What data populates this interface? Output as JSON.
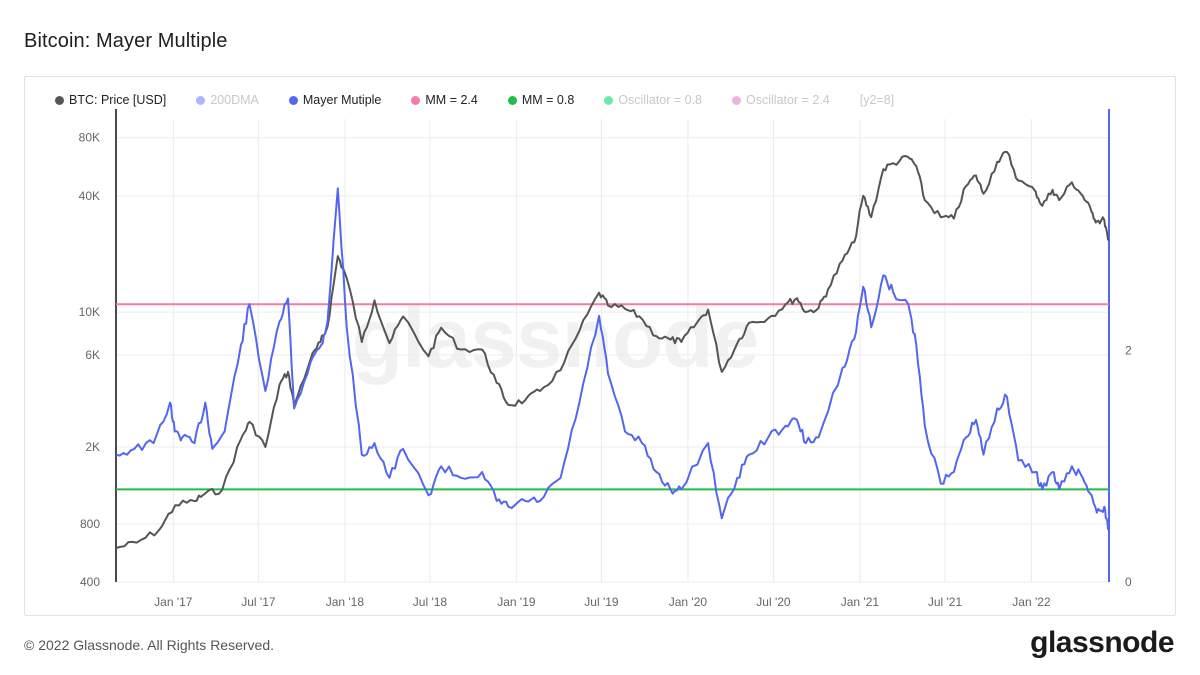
{
  "page": {
    "title": "Bitcoin: Mayer Multiple",
    "footer": "© 2022 Glassnode. All Rights Reserved.",
    "brand": "glassnode",
    "watermark": "glassnode"
  },
  "colors": {
    "price": "#555555",
    "dma": "#8a97f5",
    "mayer": "#5266f0",
    "mm24": "#f07dae",
    "mm08": "#22bb44",
    "osc08": "#2fe08a",
    "osc24": "#f08fd0"
  },
  "legend": [
    {
      "label": "BTC: Price [USD]",
      "color": "#555555",
      "muted": false
    },
    {
      "label": "200DMA",
      "color": "#8a97f5",
      "muted": true
    },
    {
      "label": "Mayer Mutiple",
      "color": "#5266f0",
      "muted": false
    },
    {
      "label": "MM = 2.4",
      "color": "#f07dae",
      "muted": false
    },
    {
      "label": "MM = 0.8",
      "color": "#22bb44",
      "muted": false
    },
    {
      "label": "Oscillator = 0.8",
      "color": "#2fe08a",
      "muted": true
    },
    {
      "label": "Oscillator = 2.4",
      "color": "#f08fd0",
      "muted": true
    }
  ],
  "legend_extra": "[y2=8]",
  "chart_data": {
    "type": "line",
    "x_tick_labels": [
      "Jan '17",
      "Jul '17",
      "Jan '18",
      "Jul '18",
      "Jan '19",
      "Jul '19",
      "Jan '20",
      "Jul '20",
      "Jan '21",
      "Jul '21",
      "Jan '22"
    ],
    "x_range": [
      "2016-09-01",
      "2022-06-15"
    ],
    "y_left": {
      "scale": "log",
      "range": [
        400,
        100000
      ],
      "ticks": [
        400,
        800,
        2000,
        6000,
        10000,
        40000,
        80000
      ],
      "tick_labels": [
        "400",
        "800",
        "2K",
        "6K",
        "10K",
        "40K",
        "80K"
      ]
    },
    "y_right": {
      "scale": "linear",
      "range": [
        0,
        4.0
      ],
      "ticks": [
        0,
        2
      ],
      "tick_labels": [
        "0",
        "2"
      ]
    },
    "grid": true,
    "legend_position": "top-left",
    "thresholds": [
      {
        "name": "MM = 2.4",
        "value": 2.4,
        "axis": "right"
      },
      {
        "name": "MM = 0.8",
        "value": 0.8,
        "axis": "right"
      }
    ],
    "series": [
      {
        "name": "BTC: Price [USD]",
        "axis": "left",
        "x": [
          "2016-09-01",
          "2016-10-15",
          "2016-12-01",
          "2017-01-05",
          "2017-02-15",
          "2017-03-10",
          "2017-04-15",
          "2017-05-25",
          "2017-06-12",
          "2017-07-16",
          "2017-08-15",
          "2017-09-02",
          "2017-09-15",
          "2017-10-20",
          "2017-11-10",
          "2017-11-25",
          "2017-12-17",
          "2018-01-05",
          "2018-02-06",
          "2018-03-05",
          "2018-04-06",
          "2018-05-05",
          "2018-06-28",
          "2018-07-25",
          "2018-09-05",
          "2018-10-20",
          "2018-11-20",
          "2018-12-15",
          "2019-01-20",
          "2019-02-20",
          "2019-04-05",
          "2019-05-15",
          "2019-06-26",
          "2019-07-15",
          "2019-08-20",
          "2019-09-20",
          "2019-10-26",
          "2019-11-25",
          "2019-12-18",
          "2020-01-20",
          "2020-02-13",
          "2020-03-13",
          "2020-04-15",
          "2020-05-10",
          "2020-06-20",
          "2020-07-27",
          "2020-08-20",
          "2020-09-08",
          "2020-10-05",
          "2020-10-25",
          "2020-11-25",
          "2020-12-20",
          "2021-01-08",
          "2021-01-25",
          "2021-02-20",
          "2021-03-13",
          "2021-04-14",
          "2021-05-01",
          "2021-05-19",
          "2021-06-22",
          "2021-07-20",
          "2021-08-15",
          "2021-09-05",
          "2021-09-21",
          "2021-10-20",
          "2021-11-10",
          "2021-12-04",
          "2022-01-10",
          "2022-01-24",
          "2022-02-15",
          "2022-03-01",
          "2022-03-28",
          "2022-04-20",
          "2022-05-09",
          "2022-05-20",
          "2022-06-05",
          "2022-06-13"
        ],
        "y": [
          600,
          640,
          740,
          1000,
          1050,
          1150,
          1200,
          2200,
          2700,
          2000,
          4200,
          4900,
          3300,
          5700,
          7000,
          8400,
          19500,
          15000,
          7000,
          11500,
          6900,
          9500,
          5900,
          8300,
          6400,
          6400,
          4300,
          3300,
          3500,
          3900,
          5000,
          8000,
          12600,
          10800,
          10400,
          9500,
          7500,
          7200,
          7000,
          8800,
          10300,
          4900,
          6900,
          8800,
          9300,
          11000,
          11800,
          10000,
          10500,
          13100,
          18500,
          23000,
          40000,
          31000,
          55000,
          59000,
          63500,
          57000,
          38000,
          31000,
          30500,
          45000,
          51000,
          41000,
          60000,
          67500,
          48000,
          42000,
          35500,
          43000,
          38000,
          47000,
          40000,
          33000,
          29500,
          30000,
          23500
        ]
      },
      {
        "name": "Mayer Mutiple",
        "axis": "right",
        "x": [
          "2016-09-01",
          "2016-10-10",
          "2016-11-20",
          "2016-12-25",
          "2017-01-04",
          "2017-01-20",
          "2017-02-15",
          "2017-03-10",
          "2017-03-25",
          "2017-04-20",
          "2017-05-25",
          "2017-06-12",
          "2017-07-16",
          "2017-08-15",
          "2017-09-02",
          "2017-09-15",
          "2017-10-20",
          "2017-11-12",
          "2017-11-25",
          "2017-12-17",
          "2018-01-05",
          "2018-02-06",
          "2018-03-05",
          "2018-04-06",
          "2018-05-05",
          "2018-06-28",
          "2018-07-25",
          "2018-09-05",
          "2018-10-20",
          "2018-11-20",
          "2018-12-15",
          "2019-01-20",
          "2019-02-20",
          "2019-04-05",
          "2019-05-15",
          "2019-06-26",
          "2019-07-15",
          "2019-08-20",
          "2019-09-25",
          "2019-10-26",
          "2019-11-25",
          "2019-12-18",
          "2020-02-13",
          "2020-03-13",
          "2020-04-15",
          "2020-05-10",
          "2020-06-20",
          "2020-07-27",
          "2020-08-20",
          "2020-09-08",
          "2020-10-05",
          "2020-11-25",
          "2020-12-20",
          "2021-01-08",
          "2021-01-25",
          "2021-02-20",
          "2021-03-13",
          "2021-04-14",
          "2021-05-01",
          "2021-05-19",
          "2021-06-22",
          "2021-07-20",
          "2021-08-15",
          "2021-09-05",
          "2021-09-21",
          "2021-10-20",
          "2021-11-10",
          "2021-12-04",
          "2022-01-10",
          "2022-01-24",
          "2022-02-15",
          "2022-03-01",
          "2022-03-28",
          "2022-04-20",
          "2022-05-09",
          "2022-05-20",
          "2022-06-05",
          "2022-06-13"
        ],
        "y": [
          1.1,
          1.15,
          1.2,
          1.55,
          1.3,
          1.25,
          1.2,
          1.55,
          1.15,
          1.3,
          2.05,
          2.4,
          1.65,
          2.25,
          2.45,
          1.5,
          1.9,
          2.05,
          2.25,
          3.4,
          2.2,
          1.1,
          1.2,
          0.9,
          1.15,
          0.75,
          1.0,
          0.9,
          0.95,
          0.7,
          0.65,
          0.7,
          0.7,
          0.9,
          1.55,
          2.3,
          1.8,
          1.3,
          1.2,
          0.95,
          0.8,
          0.8,
          1.2,
          0.55,
          0.9,
          1.1,
          1.25,
          1.35,
          1.4,
          1.2,
          1.25,
          1.85,
          2.1,
          2.55,
          2.2,
          2.65,
          2.5,
          2.4,
          2.05,
          1.35,
          0.85,
          0.95,
          1.25,
          1.4,
          1.1,
          1.5,
          1.6,
          1.05,
          0.95,
          0.8,
          0.95,
          0.8,
          1.0,
          0.9,
          0.75,
          0.6,
          0.65,
          0.45
        ]
      }
    ]
  }
}
